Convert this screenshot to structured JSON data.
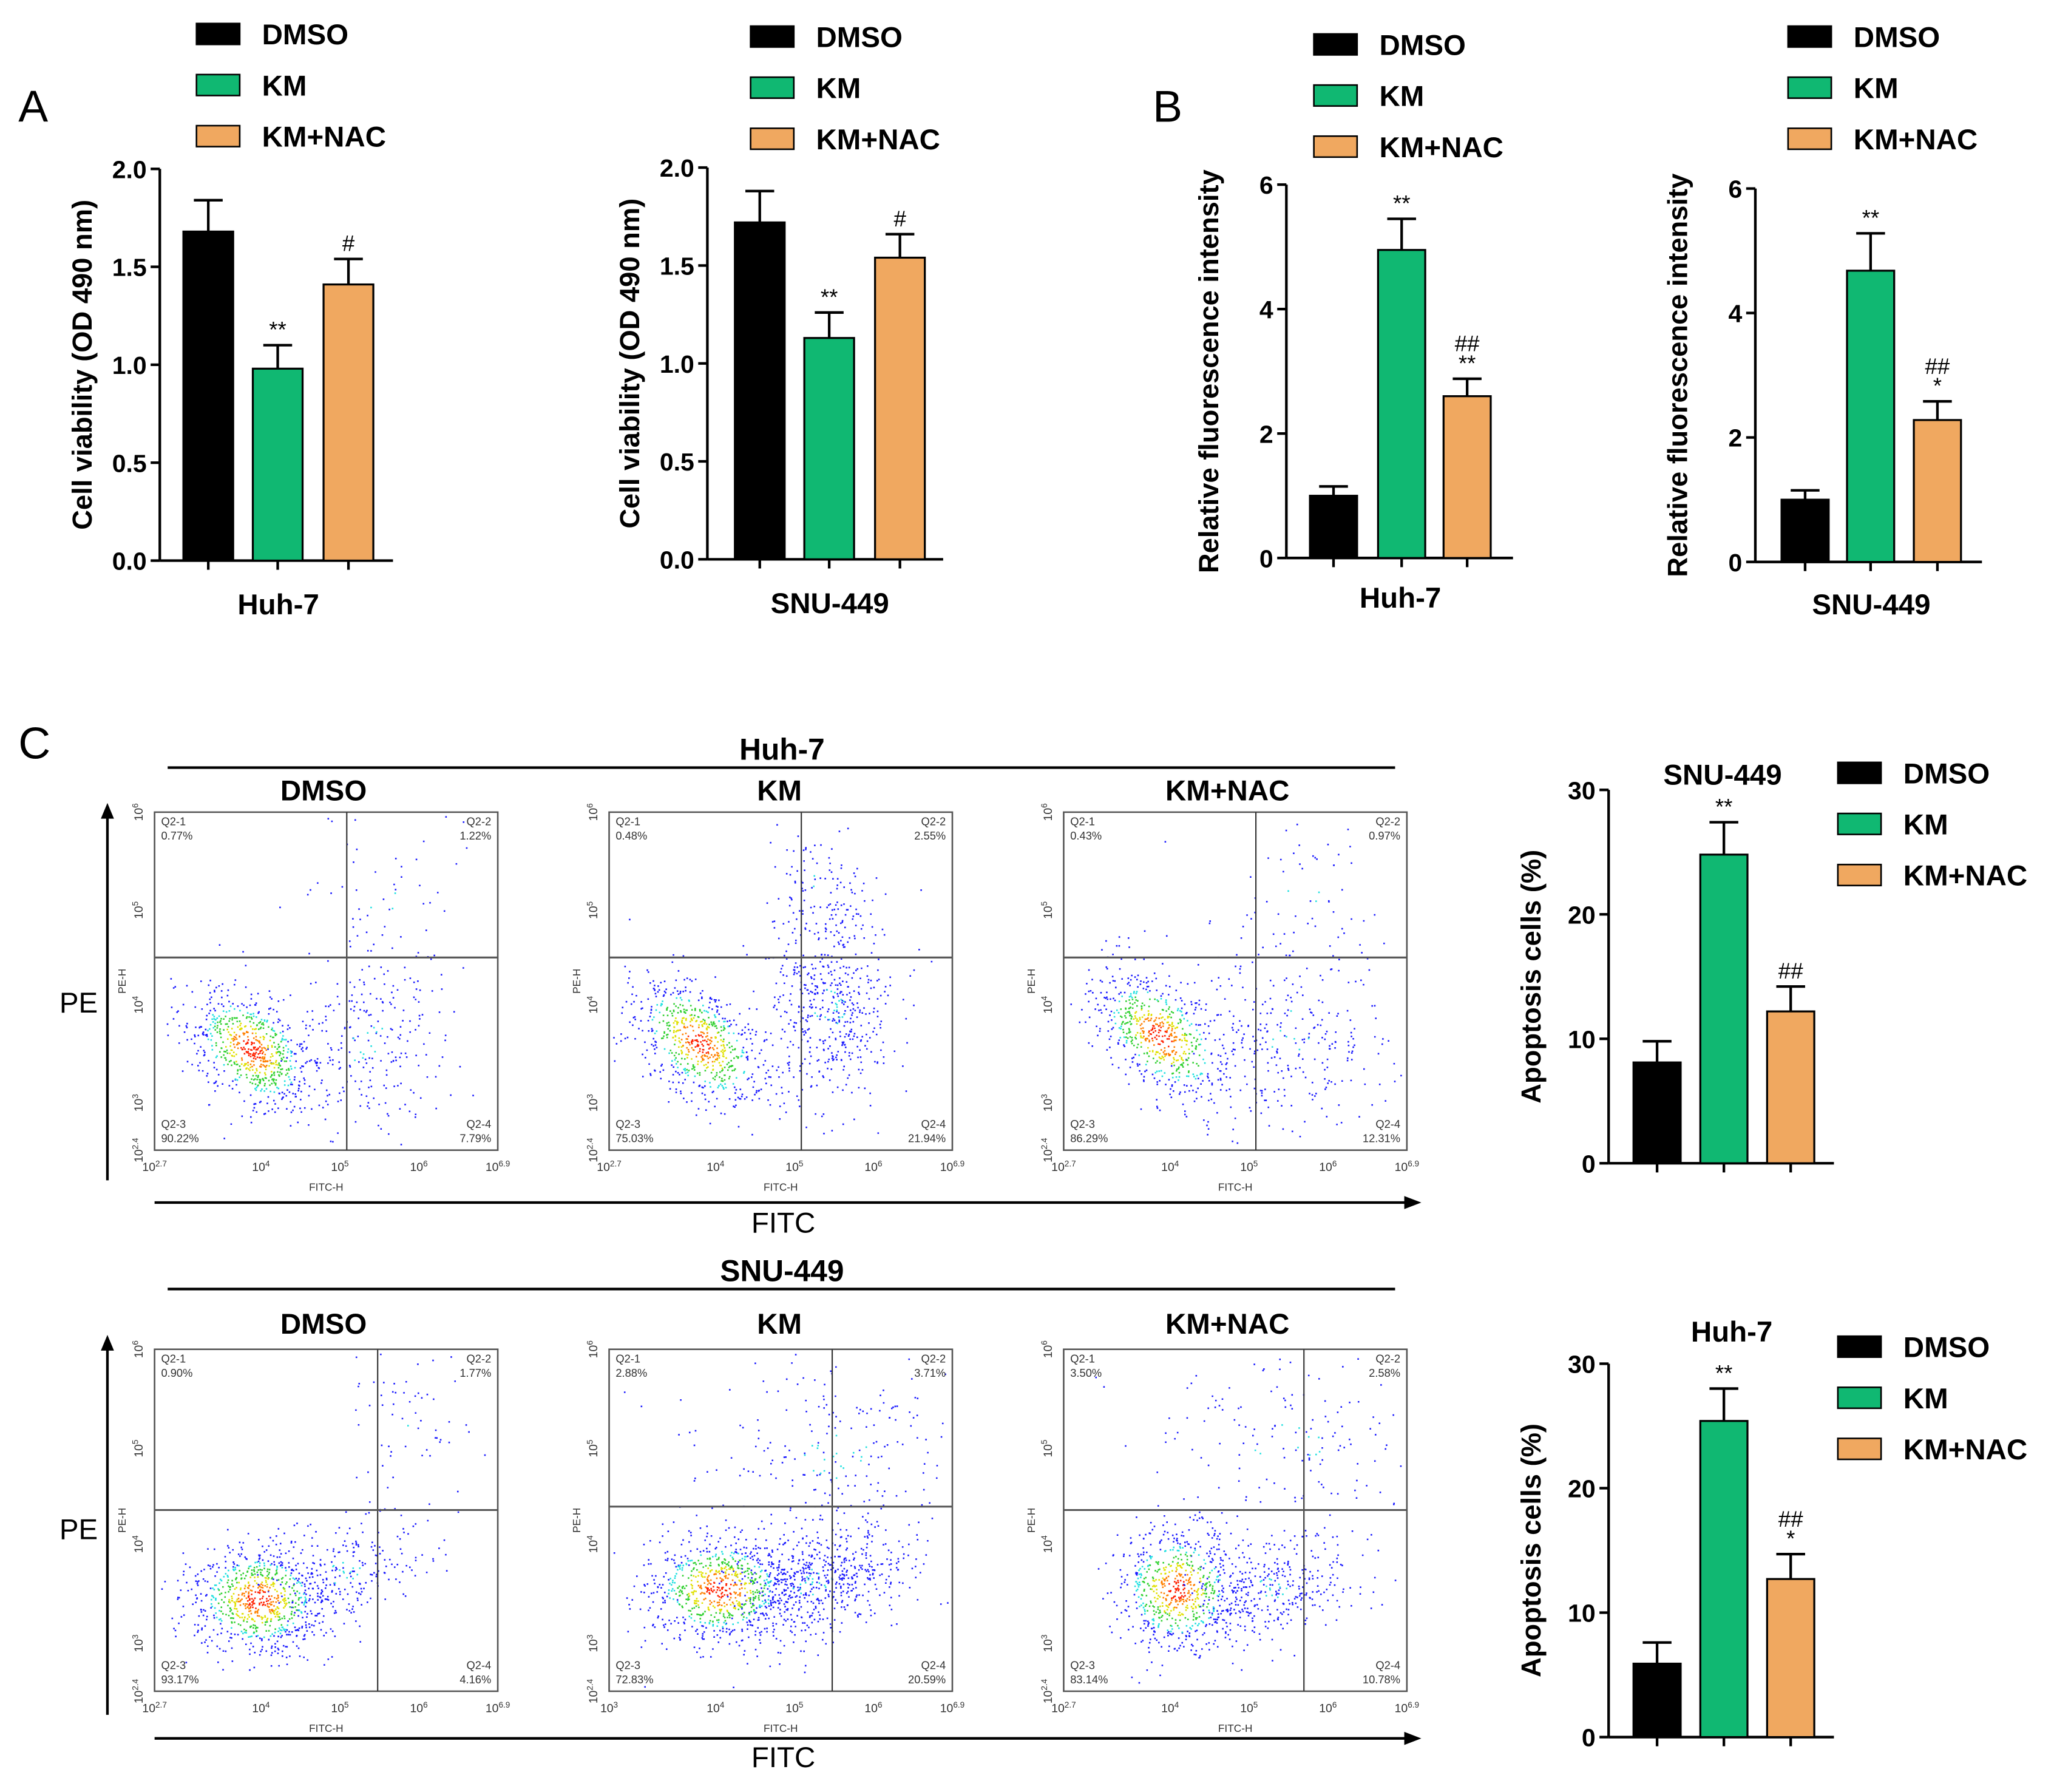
{
  "panel_labels": [
    "A",
    "B",
    "C"
  ],
  "colors": {
    "DMSO": "#000000",
    "KM": "#10b872",
    "KM+NAC": "#f0a860",
    "dots": "#1a1aff"
  },
  "legend": [
    "DMSO",
    "KM",
    "KM+NAC"
  ],
  "chart_data": [
    {
      "id": "A-huh7",
      "type": "bar",
      "title": "",
      "xlabel": "Huh-7",
      "ylabel": "Cell viability (OD 490 nm)",
      "ylim": [
        0,
        2.0
      ],
      "yticks": [
        "0.0",
        "0.5",
        "1.0",
        "1.5",
        "2.0"
      ],
      "tick_step": 0.5,
      "categories": [
        "DMSO",
        "KM",
        "KM+NAC"
      ],
      "values": [
        1.68,
        0.98,
        1.41
      ],
      "errors": [
        0.16,
        0.12,
        0.13
      ],
      "annotations": [
        "",
        "**",
        "#"
      ]
    },
    {
      "id": "A-snu449",
      "type": "bar",
      "title": "",
      "xlabel": "SNU-449",
      "ylabel": "Cell viability (OD 490 nm)",
      "ylim": [
        0,
        2.0
      ],
      "yticks": [
        "0.0",
        "0.5",
        "1.0",
        "1.5",
        "2.0"
      ],
      "tick_step": 0.5,
      "categories": [
        "DMSO",
        "KM",
        "KM+NAC"
      ],
      "values": [
        1.72,
        1.13,
        1.54
      ],
      "errors": [
        0.16,
        0.13,
        0.12
      ],
      "annotations": [
        "",
        "**",
        "#"
      ]
    },
    {
      "id": "B-huh7",
      "type": "bar",
      "title": "",
      "xlabel": "Huh-7",
      "ylabel": "Relative fluorescence intensity",
      "ylim": [
        0,
        6
      ],
      "yticks": [
        "0",
        "2",
        "4",
        "6"
      ],
      "tick_step": 2,
      "categories": [
        "DMSO",
        "KM",
        "KM+NAC"
      ],
      "values": [
        1.0,
        4.95,
        2.6
      ],
      "errors": [
        0.15,
        0.5,
        0.28
      ],
      "annotations": [
        "",
        "**",
        "##\n**"
      ]
    },
    {
      "id": "B-snu449",
      "type": "bar",
      "title": "",
      "xlabel": "SNU-449",
      "ylabel": "Relative fluorescence intensity",
      "ylim": [
        0,
        6
      ],
      "yticks": [
        "0",
        "2",
        "4",
        "6"
      ],
      "tick_step": 2,
      "categories": [
        "DMSO",
        "KM",
        "KM+NAC"
      ],
      "values": [
        1.0,
        4.68,
        2.28
      ],
      "errors": [
        0.15,
        0.6,
        0.3
      ],
      "annotations": [
        "",
        "**",
        "##\n*"
      ]
    },
    {
      "id": "C-snu449",
      "type": "bar",
      "title": "SNU-449",
      "xlabel": "",
      "ylabel": "Apoptosis cells (%)",
      "ylim": [
        0,
        30
      ],
      "yticks": [
        "0",
        "10",
        "20",
        "30"
      ],
      "tick_step": 10,
      "categories": [
        "DMSO",
        "KM",
        "KM+NAC"
      ],
      "values": [
        8.1,
        24.8,
        12.2
      ],
      "errors": [
        1.7,
        2.6,
        2.0
      ],
      "annotations": [
        "",
        "**",
        "##"
      ]
    },
    {
      "id": "C-huh7",
      "type": "bar",
      "title": "Huh-7",
      "xlabel": "",
      "ylabel": "Apoptosis cells (%)",
      "ylim": [
        0,
        30
      ],
      "yticks": [
        "0",
        "10",
        "20",
        "30"
      ],
      "tick_step": 10,
      "categories": [
        "DMSO",
        "KM",
        "KM+NAC"
      ],
      "values": [
        5.9,
        25.4,
        12.7
      ],
      "errors": [
        1.7,
        2.6,
        2.0
      ],
      "annotations": [
        "",
        "**",
        "##\n*"
      ]
    }
  ],
  "flow": {
    "y_axis_label": "PE",
    "x_axis_label": "FITC",
    "plot_y_label": "PE-H",
    "plot_x_label": "FITC-H",
    "y_ticks": [
      "10^6",
      "10^5",
      "10^4",
      "10^3",
      "10^2.4"
    ],
    "rows": [
      {
        "title": "Huh-7",
        "plots": [
          {
            "condition": "DMSO",
            "x_ticks": [
              "10^2.7",
              "10^4",
              "10^5",
              "10^6",
              "10^6.9"
            ],
            "quadrants": [
              {
                "name": "Q2-1",
                "value": "0.77%"
              },
              {
                "name": "Q2-2",
                "value": "1.22%"
              },
              {
                "name": "Q2-3",
                "value": "90.22%"
              },
              {
                "name": "Q2-4",
                "value": "7.79%"
              }
            ]
          },
          {
            "condition": "KM",
            "x_ticks": [
              "10^2.7",
              "10^4",
              "10^5",
              "10^6",
              "10^6.9"
            ],
            "quadrants": [
              {
                "name": "Q2-1",
                "value": "0.48%"
              },
              {
                "name": "Q2-2",
                "value": "2.55%"
              },
              {
                "name": "Q2-3",
                "value": "75.03%"
              },
              {
                "name": "Q2-4",
                "value": "21.94%"
              }
            ]
          },
          {
            "condition": "KM+NAC",
            "x_ticks": [
              "10^2.7",
              "10^4",
              "10^5",
              "10^6",
              "10^6.9"
            ],
            "quadrants": [
              {
                "name": "Q2-1",
                "value": "0.43%"
              },
              {
                "name": "Q2-2",
                "value": "0.97%"
              },
              {
                "name": "Q2-3",
                "value": "86.29%"
              },
              {
                "name": "Q2-4",
                "value": "12.31%"
              }
            ]
          }
        ]
      },
      {
        "title": "SNU-449",
        "plots": [
          {
            "condition": "DMSO",
            "x_ticks": [
              "10^2.7",
              "10^4",
              "10^5",
              "10^6",
              "10^6.9"
            ],
            "quadrants": [
              {
                "name": "Q2-1",
                "value": "0.90%"
              },
              {
                "name": "Q2-2",
                "value": "1.77%"
              },
              {
                "name": "Q2-3",
                "value": "93.17%"
              },
              {
                "name": "Q2-4",
                "value": "4.16%"
              }
            ]
          },
          {
            "condition": "KM",
            "x_ticks": [
              "10^3",
              "10^4",
              "10^5",
              "10^6",
              "10^6.9"
            ],
            "quadrants": [
              {
                "name": "Q2-1",
                "value": "2.88%"
              },
              {
                "name": "Q2-2",
                "value": "3.71%"
              },
              {
                "name": "Q2-3",
                "value": "72.83%"
              },
              {
                "name": "Q2-4",
                "value": "20.59%"
              }
            ]
          },
          {
            "condition": "KM+NAC",
            "x_ticks": [
              "10^2.7",
              "10^4",
              "10^5",
              "10^6",
              "10^6.9"
            ],
            "quadrants": [
              {
                "name": "Q2-1",
                "value": "3.50%"
              },
              {
                "name": "Q2-2",
                "value": "2.58%"
              },
              {
                "name": "Q2-3",
                "value": "83.14%"
              },
              {
                "name": "Q2-4",
                "value": "10.78%"
              }
            ]
          }
        ]
      }
    ]
  }
}
